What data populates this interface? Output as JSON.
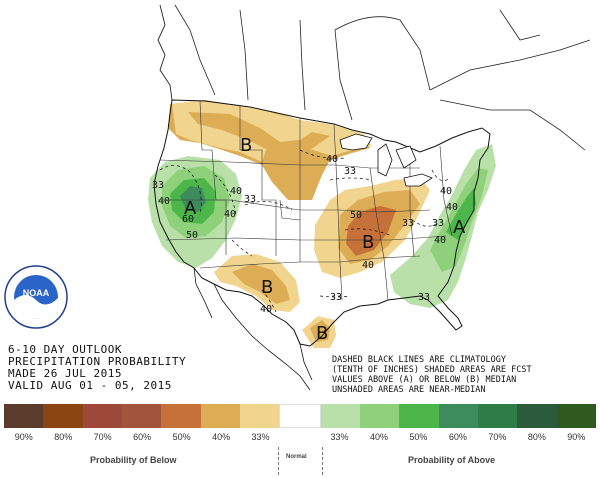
{
  "map": {
    "pole_letters": [
      "A",
      "B",
      "B",
      "B",
      "B",
      "A"
    ],
    "contour_labels": [
      "33",
      "40",
      "50",
      "60",
      "40",
      "33",
      "40",
      "33",
      "40",
      "40",
      "40",
      "33",
      "40",
      "50",
      "33",
      "40",
      "33",
      "33",
      "40"
    ]
  },
  "outlook": {
    "title_line1": "6-10 DAY OUTLOOK",
    "title_line2": "PRECIPITATION PROBABILITY",
    "made": "MADE   26 JUL 2015",
    "valid": "VALID  AUG 01 - 05, 2015"
  },
  "notes": {
    "line1": "DASHED BLACK LINES ARE CLIMATOLOGY",
    "line2": "(TENTH OF INCHES) SHADED AREAS ARE FCST",
    "line3": "VALUES ABOVE (A) OR BELOW (B) MEDIAN",
    "line4": "UNSHADED AREAS ARE NEAR-MEDIAN"
  },
  "legend": {
    "ticks": [
      "90%",
      "80%",
      "70%",
      "60%",
      "50%",
      "40%",
      "33%",
      "33%",
      "40%",
      "50%",
      "60%",
      "70%",
      "80%",
      "90%"
    ],
    "colors": [
      "#5a3b2c",
      "#8b4513",
      "#9e4a3b",
      "#a3553c",
      "#c6713a",
      "#ddad56",
      "#f1d48e",
      "#ffffff",
      "#b9e0a9",
      "#8fd17a",
      "#4cb64a",
      "#3c8c5c",
      "#2e7d47",
      "#2b5b3b",
      "#2f5a1e"
    ],
    "below_label": "Probability of Below",
    "normal_label": "Normal",
    "above_label": "Probability of Above"
  },
  "logo": {
    "text": "NOAA"
  }
}
